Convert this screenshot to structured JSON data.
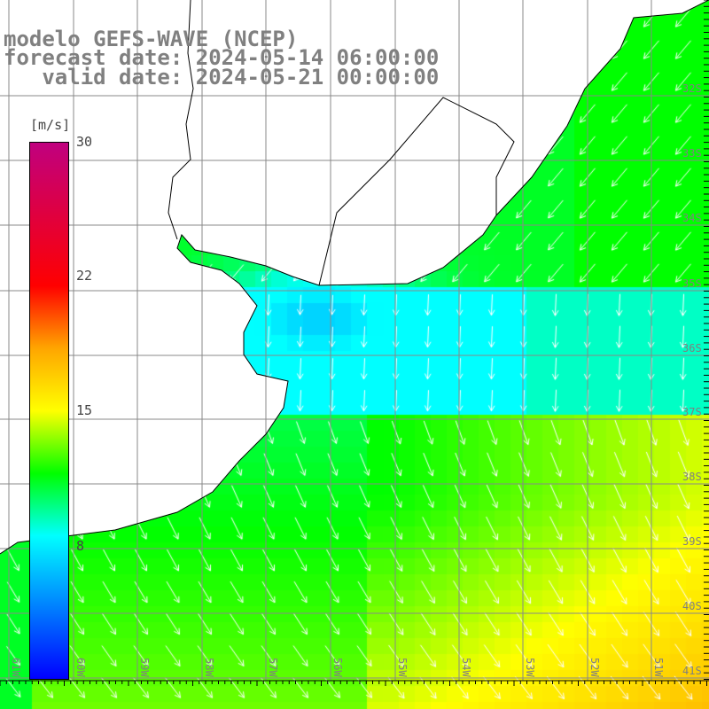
{
  "title": {
    "line1": "modelo GEFS-WAVE (NCEP)",
    "line2": "forecast date: 2024-05-14 06:00:00",
    "line3": "   valid date: 2024-05-21 00:00:00"
  },
  "colorbar": {
    "unit": "[m/s]",
    "ticks": [
      {
        "label": "30",
        "value": 30
      },
      {
        "label": "22",
        "value": 22
      },
      {
        "label": "15",
        "value": 15
      },
      {
        "label": "8",
        "value": 8
      }
    ],
    "min": 0,
    "max": 30,
    "stops": [
      {
        "v": 0,
        "c": "#0000ff"
      },
      {
        "v": 8,
        "c": "#00ffff"
      },
      {
        "v": 11.5,
        "c": "#00ff00"
      },
      {
        "v": 15,
        "c": "#ffff00"
      },
      {
        "v": 18.5,
        "c": "#ffa500"
      },
      {
        "v": 22,
        "c": "#ff0000"
      },
      {
        "v": 30,
        "c": "#c0007f"
      }
    ]
  },
  "lon_labels": [
    "61W",
    "60W",
    "59W",
    "58W",
    "57W",
    "56W",
    "55W",
    "54W",
    "53W",
    "52W",
    "51W"
  ],
  "lat_labels": [
    "32S",
    "33S",
    "34S",
    "35S",
    "36S",
    "37S",
    "38S",
    "39S",
    "40S",
    "41S"
  ],
  "colors": {
    "grid": "#888888",
    "land": "#ffffff",
    "arrow": "#ffffff",
    "label": "#808080"
  }
}
